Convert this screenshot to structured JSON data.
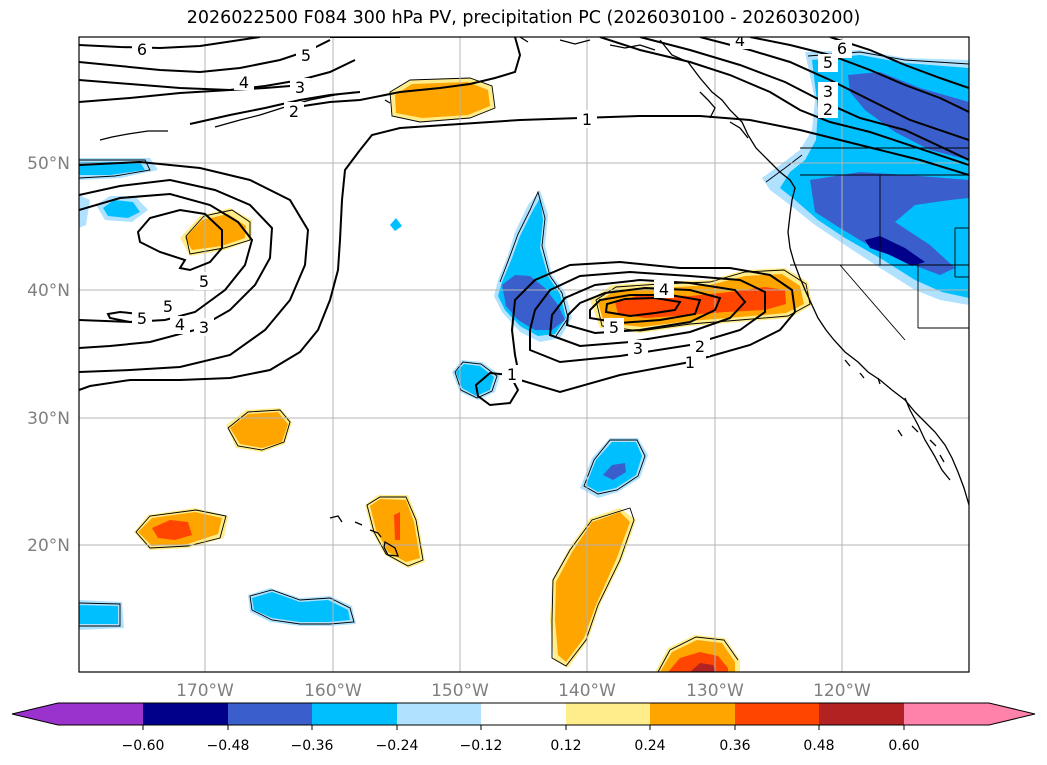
{
  "title": "2026022500 F084 300 hPa PV, precipitation PC (2026030100 - 2026030200)",
  "lat_labels": [
    "50°N",
    "40°N",
    "30°N",
    "20°N"
  ],
  "lon_labels": [
    "170°W",
    "160°W",
    "150°W",
    "140°W",
    "130°W",
    "120°W"
  ],
  "contour_labels": [
    "6",
    "5",
    "4",
    "3",
    "2",
    "1",
    "1",
    "4",
    "5",
    "5",
    "5",
    "4",
    "3",
    "1",
    "4",
    "5",
    "3",
    "2",
    "1",
    "6",
    "5",
    "3",
    "2",
    "4"
  ],
  "colorbar": {
    "ticks": [
      "−0.60",
      "−0.48",
      "−0.36",
      "−0.24",
      "−0.12",
      "0.12",
      "0.24",
      "0.36",
      "0.48",
      "0.60"
    ],
    "colors": [
      "#9a32cd",
      "#00008b",
      "#3a5fcd",
      "#00bfff",
      "#b0e2ff",
      "#ffffff",
      "#ffec8b",
      "#ffa500",
      "#ff4500",
      "#b22222",
      "#ff82ab"
    ]
  },
  "palette": {
    "neg_deep": "#3a5fcd",
    "neg_mid": "#00bfff",
    "neg_light": "#b0e2ff",
    "pos_light": "#ffec8b",
    "pos_mid": "#ffa500",
    "pos_strong": "#ff4500",
    "pos_deep": "#b22222"
  }
}
